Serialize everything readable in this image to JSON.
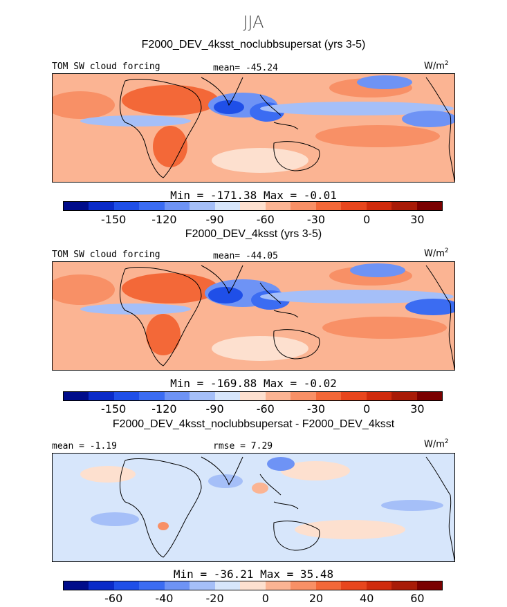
{
  "figure": {
    "season": "JJA"
  },
  "colors": {
    "palette": [
      "#000c8a",
      "#0a2bc8",
      "#1f4fe8",
      "#3b6cf2",
      "#6e93f5",
      "#a5bff8",
      "#d7e6fb",
      "#fde0cf",
      "#fbb493",
      "#f89066",
      "#f36838",
      "#e8461d",
      "#cf2b0c",
      "#a81b07",
      "#7a0000"
    ]
  },
  "panels": [
    {
      "title": "F2000_DEV_4ksst_noclubbsupersat (yrs 3-5)",
      "left_label": "TOM SW cloud forcing",
      "center_label": "mean= -45.24",
      "units_base": "W/m",
      "units_exp": "2",
      "stats": "Min = -171.38 Max =  -0.01",
      "ticks": [
        "-150",
        "-120",
        "-90",
        "-60",
        "-30",
        "0",
        "30"
      ]
    },
    {
      "title": "F2000_DEV_4ksst (yrs 3-5)",
      "left_label": "TOM SW cloud forcing",
      "center_label": "mean= -44.05",
      "units_base": "W/m",
      "units_exp": "2",
      "stats": "Min = -169.88 Max =  -0.02",
      "ticks": [
        "-150",
        "-120",
        "-90",
        "-60",
        "-30",
        "0",
        "30"
      ]
    },
    {
      "title": "F2000_DEV_4ksst_noclubbsupersat - F2000_DEV_4ksst",
      "left_label": "mean = -1.19",
      "center_label": "rmse = 7.29",
      "units_base": "W/m",
      "units_exp": "2",
      "stats": "Min = -36.21 Max =  35.48",
      "ticks": [
        "-60",
        "-40",
        "-20",
        "0",
        "20",
        "40",
        "60"
      ]
    }
  ],
  "chart_data": [
    {
      "type": "heatmap",
      "title": "F2000_DEV_4ksst_noclubbsupersat (yrs 3-5)",
      "field": "TOM SW cloud forcing",
      "units": "W/m2",
      "mean": -45.24,
      "min": -171.38,
      "max": -0.01,
      "colorbar_levels": [
        -150,
        -120,
        -90,
        -60,
        -30,
        0,
        30
      ]
    },
    {
      "type": "heatmap",
      "title": "F2000_DEV_4ksst (yrs 3-5)",
      "field": "TOM SW cloud forcing",
      "units": "W/m2",
      "mean": -44.05,
      "min": -169.88,
      "max": -0.02,
      "colorbar_levels": [
        -150,
        -120,
        -90,
        -60,
        -30,
        0,
        30
      ]
    },
    {
      "type": "heatmap",
      "title": "F2000_DEV_4ksst_noclubbsupersat - F2000_DEV_4ksst",
      "units": "W/m2",
      "mean": -1.19,
      "rmse": 7.29,
      "min": -36.21,
      "max": 35.48,
      "colorbar_levels": [
        -60,
        -40,
        -20,
        0,
        20,
        40,
        60
      ]
    }
  ]
}
